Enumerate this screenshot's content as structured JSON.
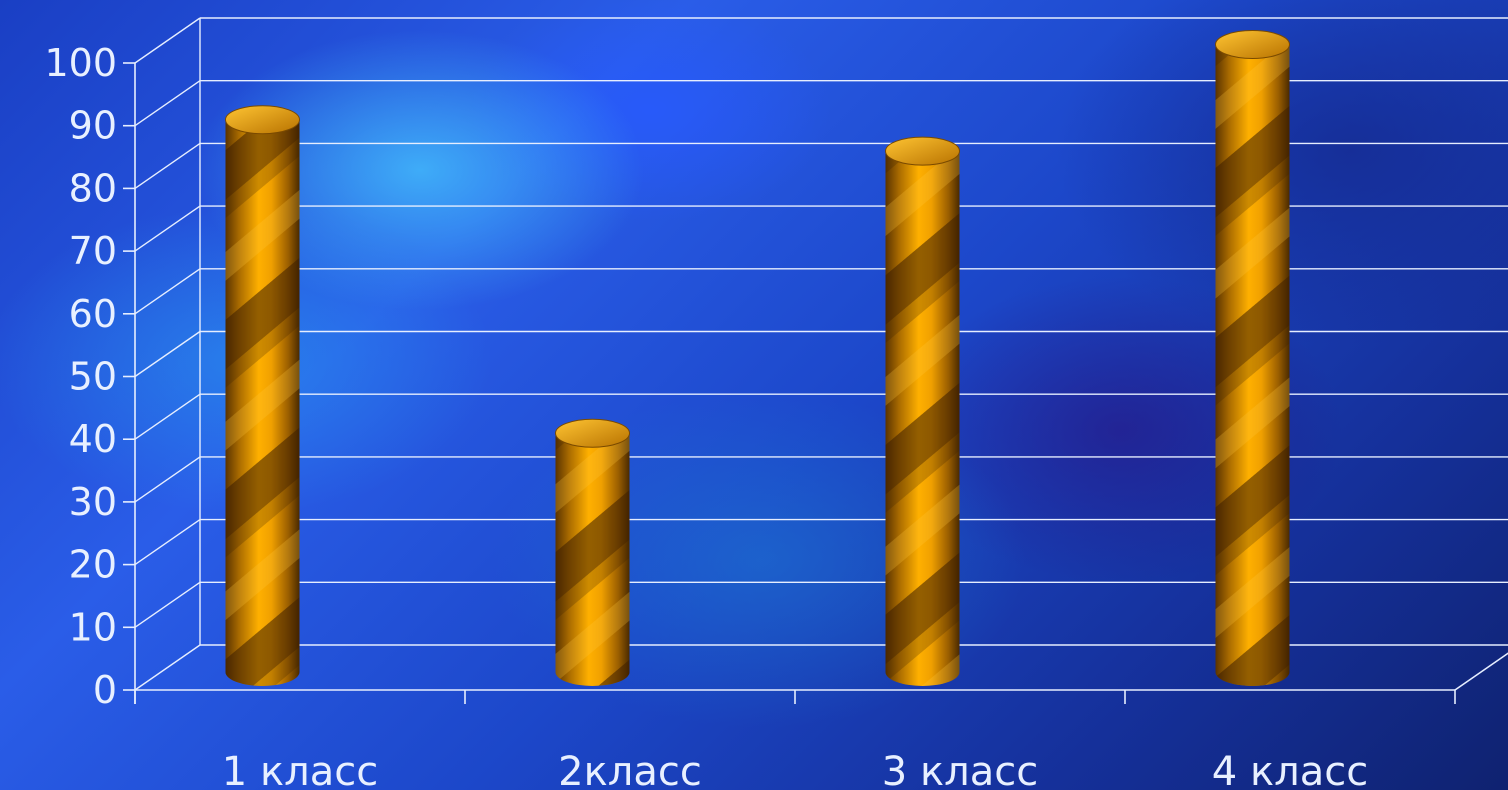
{
  "chart_data": {
    "type": "bar",
    "style": "3d-cylinder",
    "categories": [
      "1 класс",
      "2класс",
      "3 класс",
      "4 класс"
    ],
    "values": [
      88,
      38,
      83,
      100
    ],
    "yticks": [
      "0",
      "10",
      "20",
      "30",
      "40",
      "50",
      "60",
      "70",
      "80",
      "90",
      "100"
    ],
    "ylim": [
      0,
      100
    ],
    "grid": true,
    "title": "",
    "xlabel": "",
    "ylabel": "",
    "colors": {
      "bar": "#f2a300",
      "bar_dark": "#6b3f00",
      "grid": "#e6eeff",
      "text": "#e8f0ff"
    }
  }
}
